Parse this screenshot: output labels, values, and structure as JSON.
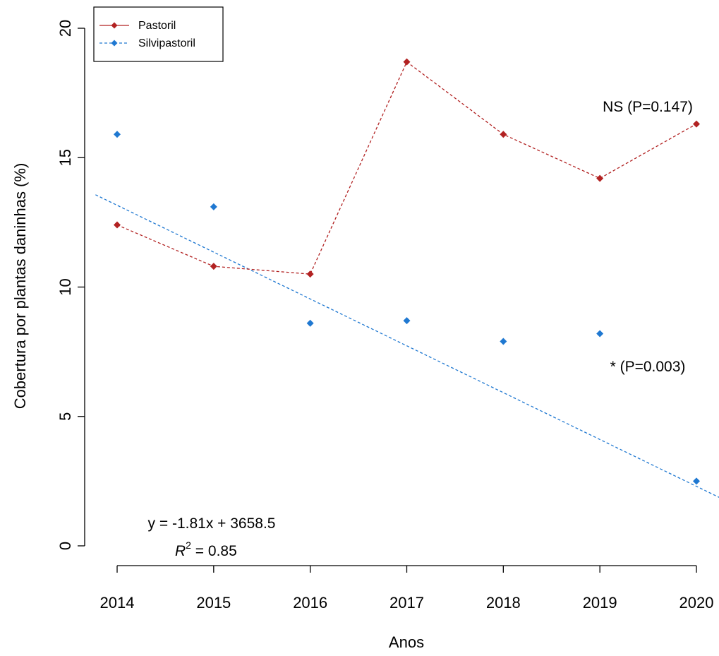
{
  "chart_data": {
    "type": "line",
    "xlabel": "Anos",
    "ylabel": "Cobertura por plantas daninhas (%)",
    "x": [
      2014,
      2015,
      2016,
      2017,
      2018,
      2019,
      2020
    ],
    "xlim": [
      2014,
      2020
    ],
    "ylim": [
      0,
      20
    ],
    "x_ticks": [
      "2014",
      "2015",
      "2016",
      "2017",
      "2018",
      "2019",
      "2020"
    ],
    "y_ticks": [
      "0",
      "5",
      "10",
      "15",
      "20"
    ],
    "grid": false,
    "legend_position": "top-left",
    "series": [
      {
        "name": "Pastoril",
        "values": [
          12.4,
          10.8,
          10.5,
          18.7,
          15.9,
          14.2,
          16.3
        ],
        "color": "#b22222",
        "style": "dashed line with diamond markers"
      },
      {
        "name": "Silvipastoril",
        "values": [
          15.9,
          13.1,
          8.6,
          8.7,
          7.9,
          8.2,
          2.5
        ],
        "color": "#1f78d1",
        "style": "diamond markers with dashed linear fit"
      }
    ],
    "fit": {
      "series": "Silvipastoril",
      "slope": -1.81,
      "intercept": 3658.5,
      "equation": "y = -1.81x + 3658.5",
      "r2_prefix": "R",
      "r2_exp": "2",
      "r2_value": " = 0.85"
    },
    "annotations": {
      "pastoril": "NS (P=0.147)",
      "silvipastoril": "* (P=0.003)"
    }
  }
}
